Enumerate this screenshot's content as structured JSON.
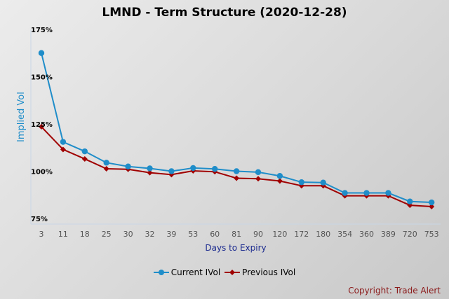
{
  "chart_data": {
    "type": "line",
    "title": "LMND - Term Structure (2020-12-28)",
    "xlabel": "Days to Expiry",
    "ylabel": "Implied Vol",
    "categories": [
      "3",
      "11",
      "18",
      "25",
      "30",
      "32",
      "39",
      "53",
      "60",
      "81",
      "90",
      "120",
      "172",
      "180",
      "354",
      "360",
      "389",
      "720",
      "753"
    ],
    "ylim": [
      75,
      175
    ],
    "yticks": [
      "75%",
      "100%",
      "125%",
      "150%",
      "175%"
    ],
    "ytick_values": [
      75,
      100,
      125,
      150,
      175
    ],
    "series": [
      {
        "name": "Current IVol",
        "color": "#1f8dc9",
        "marker": "circle",
        "values": [
          162.5,
          115.5,
          110.5,
          104.5,
          102.5,
          101.5,
          100.0,
          101.7,
          101.2,
          100.0,
          99.5,
          97.5,
          94.2,
          94.0,
          88.5,
          88.5,
          88.5,
          84.0,
          83.5
        ]
      },
      {
        "name": "Previous IVol",
        "color": "#a00000",
        "marker": "diamond",
        "values": [
          123.5,
          111.5,
          106.5,
          101.3,
          101.0,
          99.2,
          98.2,
          100.2,
          99.7,
          96.3,
          96.0,
          94.8,
          92.3,
          92.3,
          87.0,
          87.0,
          87.0,
          82.0,
          81.3
        ]
      }
    ],
    "grid": false,
    "legend_position": "bottom"
  },
  "credit": "Copyright: Trade Alert"
}
